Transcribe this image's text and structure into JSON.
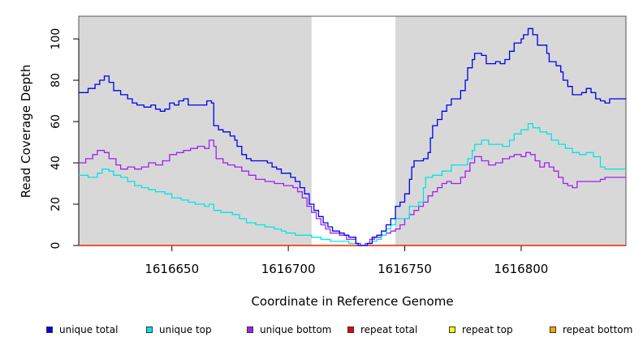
{
  "chart_data": {
    "type": "line",
    "xlabel": "Coordinate in Reference Genome",
    "ylabel": "Read Coverage Depth",
    "xlim": [
      1616610,
      1616845
    ],
    "ylim": [
      0,
      111
    ],
    "x_ticks": [
      1616650,
      1616700,
      1616750,
      1616800
    ],
    "y_ticks": [
      0,
      20,
      40,
      60,
      80,
      100
    ],
    "shaded_regions": [
      [
        1616610,
        1616710
      ],
      [
        1616746,
        1616845
      ]
    ],
    "grid": false,
    "legend_position": "bottom",
    "series": [
      {
        "name": "unique total",
        "color": "#0000ee",
        "points": [
          [
            1616610,
            74
          ],
          [
            1616614,
            76
          ],
          [
            1616617,
            78
          ],
          [
            1616619,
            80
          ],
          [
            1616621,
            82
          ],
          [
            1616623,
            79
          ],
          [
            1616625,
            75
          ],
          [
            1616628,
            73
          ],
          [
            1616631,
            71
          ],
          [
            1616633,
            69
          ],
          [
            1616635,
            68
          ],
          [
            1616638,
            67
          ],
          [
            1616641,
            68
          ],
          [
            1616643,
            66
          ],
          [
            1616645,
            65
          ],
          [
            1616647,
            66
          ],
          [
            1616649,
            69
          ],
          [
            1616651,
            68
          ],
          [
            1616653,
            70
          ],
          [
            1616655,
            71
          ],
          [
            1616657,
            68
          ],
          [
            1616660,
            68
          ],
          [
            1616663,
            68
          ],
          [
            1616665,
            70
          ],
          [
            1616667,
            69
          ],
          [
            1616668,
            58
          ],
          [
            1616670,
            56
          ],
          [
            1616672,
            55
          ],
          [
            1616675,
            53
          ],
          [
            1616677,
            51
          ],
          [
            1616678,
            48
          ],
          [
            1616680,
            44
          ],
          [
            1616682,
            42
          ],
          [
            1616684,
            41
          ],
          [
            1616688,
            41
          ],
          [
            1616691,
            40
          ],
          [
            1616693,
            38
          ],
          [
            1616695,
            37
          ],
          [
            1616697,
            35
          ],
          [
            1616701,
            33
          ],
          [
            1616703,
            31
          ],
          [
            1616705,
            28
          ],
          [
            1616707,
            25
          ],
          [
            1616709,
            20
          ],
          [
            1616711,
            17
          ],
          [
            1616713,
            14
          ],
          [
            1616715,
            11
          ],
          [
            1616717,
            9
          ],
          [
            1616719,
            7
          ],
          [
            1616722,
            6
          ],
          [
            1616724,
            5
          ],
          [
            1616726,
            4
          ],
          [
            1616729,
            1
          ],
          [
            1616730,
            0
          ],
          [
            1616732,
            0
          ],
          [
            1616734,
            1
          ],
          [
            1616736,
            4
          ],
          [
            1616738,
            5
          ],
          [
            1616740,
            7
          ],
          [
            1616742,
            10
          ],
          [
            1616744,
            13
          ],
          [
            1616746,
            19
          ],
          [
            1616748,
            21
          ],
          [
            1616750,
            25
          ],
          [
            1616752,
            32
          ],
          [
            1616753,
            38
          ],
          [
            1616754,
            41
          ],
          [
            1616758,
            42
          ],
          [
            1616760,
            45
          ],
          [
            1616761,
            52
          ],
          [
            1616762,
            58
          ],
          [
            1616764,
            61
          ],
          [
            1616766,
            65
          ],
          [
            1616768,
            68
          ],
          [
            1616770,
            71
          ],
          [
            1616774,
            75
          ],
          [
            1616776,
            80
          ],
          [
            1616777,
            86
          ],
          [
            1616779,
            90
          ],
          [
            1616780,
            93
          ],
          [
            1616783,
            92
          ],
          [
            1616785,
            88
          ],
          [
            1616789,
            89
          ],
          [
            1616791,
            88
          ],
          [
            1616793,
            90
          ],
          [
            1616795,
            94
          ],
          [
            1616797,
            98
          ],
          [
            1616800,
            100
          ],
          [
            1616801,
            102
          ],
          [
            1616803,
            105
          ],
          [
            1616805,
            102
          ],
          [
            1616807,
            97
          ],
          [
            1616809,
            97
          ],
          [
            1616811,
            93
          ],
          [
            1616812,
            89
          ],
          [
            1616815,
            87
          ],
          [
            1616817,
            84
          ],
          [
            1616818,
            80
          ],
          [
            1616820,
            77
          ],
          [
            1616822,
            73
          ],
          [
            1616826,
            74
          ],
          [
            1616828,
            76
          ],
          [
            1616830,
            74
          ],
          [
            1616832,
            71
          ],
          [
            1616834,
            70
          ],
          [
            1616836,
            69
          ],
          [
            1616838,
            71
          ]
        ]
      },
      {
        "name": "unique top",
        "color": "#00e5e5",
        "points": [
          [
            1616610,
            34
          ],
          [
            1616614,
            33
          ],
          [
            1616618,
            35
          ],
          [
            1616620,
            37
          ],
          [
            1616623,
            36
          ],
          [
            1616625,
            34
          ],
          [
            1616628,
            33
          ],
          [
            1616631,
            31
          ],
          [
            1616634,
            29
          ],
          [
            1616637,
            28
          ],
          [
            1616640,
            27
          ],
          [
            1616643,
            26
          ],
          [
            1616647,
            25
          ],
          [
            1616650,
            23
          ],
          [
            1616654,
            22
          ],
          [
            1616657,
            21
          ],
          [
            1616660,
            20
          ],
          [
            1616664,
            19
          ],
          [
            1616666,
            20
          ],
          [
            1616668,
            17
          ],
          [
            1616671,
            16
          ],
          [
            1616676,
            15
          ],
          [
            1616679,
            13
          ],
          [
            1616682,
            11
          ],
          [
            1616686,
            10
          ],
          [
            1616690,
            9
          ],
          [
            1616694,
            8
          ],
          [
            1616697,
            7
          ],
          [
            1616699,
            6
          ],
          [
            1616703,
            5
          ],
          [
            1616708,
            5
          ],
          [
            1616710,
            4
          ],
          [
            1616714,
            3
          ],
          [
            1616718,
            2
          ],
          [
            1616722,
            2
          ],
          [
            1616726,
            1
          ],
          [
            1616730,
            0
          ],
          [
            1616734,
            1
          ],
          [
            1616736,
            2
          ],
          [
            1616738,
            3
          ],
          [
            1616740,
            5
          ],
          [
            1616742,
            8
          ],
          [
            1616744,
            10
          ],
          [
            1616746,
            13
          ],
          [
            1616752,
            19
          ],
          [
            1616756,
            21
          ],
          [
            1616758,
            28
          ],
          [
            1616759,
            33
          ],
          [
            1616762,
            34
          ],
          [
            1616766,
            36
          ],
          [
            1616770,
            39
          ],
          [
            1616777,
            42
          ],
          [
            1616779,
            46
          ],
          [
            1616780,
            49
          ],
          [
            1616783,
            51
          ],
          [
            1616786,
            49
          ],
          [
            1616789,
            49
          ],
          [
            1616792,
            48
          ],
          [
            1616795,
            51
          ],
          [
            1616797,
            54
          ],
          [
            1616800,
            56
          ],
          [
            1616803,
            59
          ],
          [
            1616805,
            57
          ],
          [
            1616808,
            55
          ],
          [
            1616811,
            54
          ],
          [
            1616813,
            51
          ],
          [
            1616816,
            49
          ],
          [
            1616819,
            47
          ],
          [
            1616822,
            45
          ],
          [
            1616825,
            44
          ],
          [
            1616828,
            45
          ],
          [
            1616831,
            43
          ],
          [
            1616834,
            38
          ],
          [
            1616836,
            37
          ]
        ]
      },
      {
        "name": "unique bottom",
        "color": "#a020f0",
        "points": [
          [
            1616610,
            40
          ],
          [
            1616613,
            42
          ],
          [
            1616616,
            44
          ],
          [
            1616618,
            46
          ],
          [
            1616621,
            45
          ],
          [
            1616623,
            42
          ],
          [
            1616626,
            39
          ],
          [
            1616628,
            37
          ],
          [
            1616631,
            38
          ],
          [
            1616634,
            37
          ],
          [
            1616637,
            38
          ],
          [
            1616640,
            40
          ],
          [
            1616643,
            39
          ],
          [
            1616646,
            41
          ],
          [
            1616649,
            44
          ],
          [
            1616652,
            45
          ],
          [
            1616655,
            46
          ],
          [
            1616658,
            47
          ],
          [
            1616661,
            48
          ],
          [
            1616664,
            47
          ],
          [
            1616666,
            51
          ],
          [
            1616668,
            48
          ],
          [
            1616669,
            42
          ],
          [
            1616672,
            40
          ],
          [
            1616674,
            39
          ],
          [
            1616677,
            38
          ],
          [
            1616680,
            36
          ],
          [
            1616683,
            34
          ],
          [
            1616686,
            32
          ],
          [
            1616690,
            31
          ],
          [
            1616694,
            30
          ],
          [
            1616698,
            29
          ],
          [
            1616702,
            28
          ],
          [
            1616704,
            26
          ],
          [
            1616706,
            23
          ],
          [
            1616708,
            19
          ],
          [
            1616710,
            16
          ],
          [
            1616712,
            13
          ],
          [
            1616714,
            10
          ],
          [
            1616716,
            8
          ],
          [
            1616718,
            6
          ],
          [
            1616722,
            5
          ],
          [
            1616725,
            3
          ],
          [
            1616729,
            1
          ],
          [
            1616731,
            0
          ],
          [
            1616733,
            1
          ],
          [
            1616735,
            3
          ],
          [
            1616737,
            4
          ],
          [
            1616740,
            5
          ],
          [
            1616742,
            6
          ],
          [
            1616744,
            7
          ],
          [
            1616746,
            8
          ],
          [
            1616748,
            10
          ],
          [
            1616750,
            13
          ],
          [
            1616752,
            15
          ],
          [
            1616754,
            17
          ],
          [
            1616756,
            19
          ],
          [
            1616758,
            21
          ],
          [
            1616760,
            24
          ],
          [
            1616762,
            26
          ],
          [
            1616764,
            28
          ],
          [
            1616766,
            30
          ],
          [
            1616768,
            31
          ],
          [
            1616770,
            30
          ],
          [
            1616774,
            33
          ],
          [
            1616776,
            36
          ],
          [
            1616778,
            40
          ],
          [
            1616780,
            43
          ],
          [
            1616783,
            41
          ],
          [
            1616786,
            39
          ],
          [
            1616789,
            40
          ],
          [
            1616792,
            42
          ],
          [
            1616795,
            43
          ],
          [
            1616797,
            44
          ],
          [
            1616800,
            43
          ],
          [
            1616802,
            45
          ],
          [
            1616804,
            44
          ],
          [
            1616806,
            41
          ],
          [
            1616808,
            38
          ],
          [
            1616810,
            40
          ],
          [
            1616812,
            38
          ],
          [
            1616814,
            36
          ],
          [
            1616816,
            33
          ],
          [
            1616818,
            30
          ],
          [
            1616820,
            29
          ],
          [
            1616822,
            28
          ],
          [
            1616824,
            31
          ],
          [
            1616834,
            32
          ],
          [
            1616836,
            33
          ]
        ]
      },
      {
        "name": "repeat total",
        "color": "#ee0000",
        "points": [
          [
            1616610,
            0
          ],
          [
            1616845,
            0
          ]
        ]
      },
      {
        "name": "repeat top",
        "color": "#ffff00",
        "points": [
          [
            1616610,
            0
          ],
          [
            1616845,
            0
          ]
        ]
      },
      {
        "name": "repeat bottom",
        "color": "#ffa500",
        "points": [
          [
            1616610,
            0
          ],
          [
            1616845,
            0
          ]
        ]
      }
    ]
  },
  "legend": {
    "items": [
      {
        "label": "unique total",
        "color": "#0000ee"
      },
      {
        "label": "unique top",
        "color": "#00e5e5"
      },
      {
        "label": "unique bottom",
        "color": "#a020f0"
      },
      {
        "label": "repeat total",
        "color": "#ee0000"
      },
      {
        "label": "repeat top",
        "color": "#ffff00"
      },
      {
        "label": "repeat bottom",
        "color": "#ffa500"
      }
    ]
  }
}
